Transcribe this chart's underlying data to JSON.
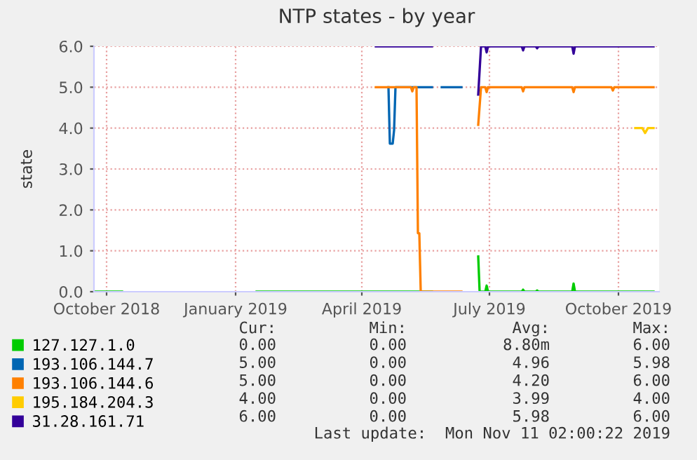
{
  "chart_data": {
    "type": "line",
    "title": "NTP states - by year",
    "ylabel": "state",
    "xlim": [
      "2018-09-22",
      "2019-10-30"
    ],
    "xticks": [
      {
        "value": "2018-10-01",
        "label": "October 2018"
      },
      {
        "value": "2019-01-01",
        "label": "January 2019"
      },
      {
        "value": "2019-04-01",
        "label": "April 2019"
      },
      {
        "value": "2019-07-01",
        "label": "July 2019"
      },
      {
        "value": "2019-10-01",
        "label": "October 2019"
      }
    ],
    "ylim": [
      0,
      6
    ],
    "yticks": [
      {
        "value": 0,
        "label": "0.0"
      },
      {
        "value": 1,
        "label": "1.0"
      },
      {
        "value": 2,
        "label": "2.0"
      },
      {
        "value": 3,
        "label": "3.0"
      },
      {
        "value": 4,
        "label": "4.0"
      },
      {
        "value": 5,
        "label": "5.0"
      },
      {
        "value": 6,
        "label": "6.0"
      }
    ],
    "grid": true,
    "legend": "bottom",
    "marker": "none",
    "line_style": "solid",
    "series": [
      {
        "name": "127.127.1.0",
        "color": "#00cc00",
        "x": [
          "2018-09-22",
          "2018-10-12",
          "2018-10-13",
          "2019-01-16",
          "2019-05-21",
          "2019-05-22",
          "2019-06-23",
          "2019-06-24",
          "2019-06-28",
          "2019-06-29",
          "2019-06-30",
          "2019-07-24",
          "2019-07-25",
          "2019-07-26",
          "2019-08-03",
          "2019-08-04",
          "2019-08-05",
          "2019-08-29",
          "2019-08-30",
          "2019-08-31",
          "2019-10-26"
        ],
        "values": [
          0,
          0,
          null,
          0,
          0,
          null,
          0.86,
          0,
          0,
          0.15,
          0,
          0,
          0.05,
          0,
          0,
          0.03,
          0,
          0,
          0.2,
          0,
          0
        ]
      },
      {
        "name": "193.106.144.7",
        "color": "#0066b3",
        "x": [
          "2019-04-20",
          "2019-04-21",
          "2019-04-23",
          "2019-04-24",
          "2019-04-25",
          "2019-05-21",
          "2019-05-22",
          "2019-05-28",
          "2019-06-11"
        ],
        "values": [
          5,
          3.62,
          3.62,
          3.95,
          5,
          5,
          null,
          5,
          5
        ]
      },
      {
        "name": "193.106.144.6",
        "color": "#ff8000",
        "x": [
          "2019-04-11",
          "2019-05-06",
          "2019-05-07",
          "2019-05-08",
          "2019-05-10",
          "2019-05-11",
          "2019-05-12",
          "2019-05-13",
          "2019-06-11",
          "2019-06-12",
          "2019-06-23",
          "2019-06-25",
          "2019-06-28",
          "2019-06-29",
          "2019-06-30",
          "2019-07-24",
          "2019-07-25",
          "2019-07-26",
          "2019-08-29",
          "2019-08-30",
          "2019-08-31",
          "2019-09-26",
          "2019-09-27",
          "2019-09-28",
          "2019-10-26"
        ],
        "values": [
          5,
          5,
          4.9,
          5,
          5,
          1.43,
          1.43,
          0,
          0,
          null,
          4.08,
          5,
          5,
          4.88,
          5,
          5,
          4.9,
          5,
          5,
          4.88,
          5,
          5,
          4.92,
          5,
          5
        ]
      },
      {
        "name": "195.184.204.3",
        "color": "#ffcc00",
        "x": [
          "2019-10-13",
          "2019-10-18",
          "2019-10-20",
          "2019-10-22",
          "2019-10-26"
        ],
        "values": [
          4,
          4,
          3.88,
          4,
          4
        ]
      },
      {
        "name": "31.28.161.71",
        "color": "#330099",
        "x": [
          "2019-04-11",
          "2019-05-21",
          "2019-05-22",
          "2019-06-23",
          "2019-06-25",
          "2019-06-28",
          "2019-06-29",
          "2019-06-30",
          "2019-07-24",
          "2019-07-25",
          "2019-07-26",
          "2019-08-03",
          "2019-08-04",
          "2019-08-05",
          "2019-08-29",
          "2019-08-30",
          "2019-08-31",
          "2019-10-26"
        ],
        "values": [
          6,
          6,
          null,
          4.82,
          6,
          6,
          5.85,
          6,
          6,
          5.9,
          6,
          6,
          5.95,
          6,
          6,
          5.82,
          6,
          6
        ]
      }
    ],
    "annotations": [
      "Cur:",
      "Min:",
      "Avg:",
      "Max:",
      "0.00",
      "0.00",
      "8.80m",
      "6.00",
      "5.00",
      "0.00",
      "4.96",
      "5.98",
      "5.00",
      "0.00",
      "4.20",
      "6.00",
      "4.00",
      "0.00",
      "3.99",
      "4.00",
      "6.00",
      "0.00",
      "5.98",
      "6.00",
      "Last update:  Mon Nov 11 02:00:22 2019"
    ]
  }
}
